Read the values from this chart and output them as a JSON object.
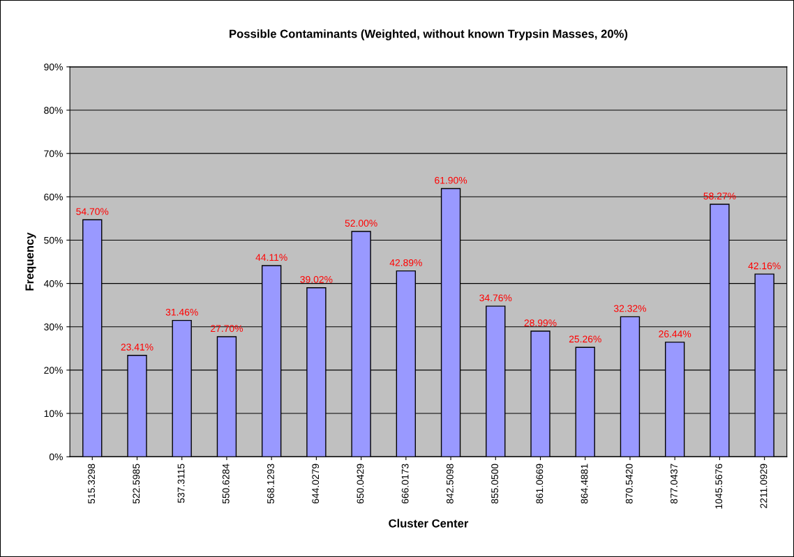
{
  "chart_data": {
    "type": "bar",
    "title": "Possible Contaminants (Weighted, without known Trypsin Masses, 20%)",
    "xlabel": "Cluster Center",
    "ylabel": "Frequency",
    "categories": [
      "515.3298",
      "522.5985",
      "537.3115",
      "550.6284",
      "568.1293",
      "644.0279",
      "650.0429",
      "666.0173",
      "842.5098",
      "855.0500",
      "861.0669",
      "864.4881",
      "870.5420",
      "877.0437",
      "1045.5676",
      "2211.0929"
    ],
    "values": [
      54.7,
      23.41,
      31.46,
      27.7,
      44.11,
      39.02,
      52.0,
      42.89,
      61.9,
      34.76,
      28.99,
      25.26,
      32.32,
      26.44,
      58.27,
      42.16
    ],
    "value_labels": [
      "54.70%",
      "23.41%",
      "31.46%",
      "27.70%",
      "44.11%",
      "39.02%",
      "52.00%",
      "42.89%",
      "61.90%",
      "34.76%",
      "28.99%",
      "25.26%",
      "32.32%",
      "26.44%",
      "58.27%",
      "42.16%"
    ],
    "color": "#9999ff",
    "ylim": [
      0,
      90
    ],
    "yticks": [
      {
        "value": 0,
        "label": "0%"
      },
      {
        "value": 10,
        "label": "10%"
      },
      {
        "value": 20,
        "label": "20%"
      },
      {
        "value": 30,
        "label": "30%"
      },
      {
        "value": 40,
        "label": "40%"
      },
      {
        "value": 50,
        "label": "50%"
      },
      {
        "value": 60,
        "label": "60%"
      },
      {
        "value": 70,
        "label": "70%"
      },
      {
        "value": 80,
        "label": "80%"
      },
      {
        "value": 90,
        "label": "90%"
      }
    ],
    "grid": "y",
    "legend": false
  }
}
